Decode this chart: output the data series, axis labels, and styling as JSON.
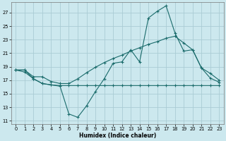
{
  "xlabel": "Humidex (Indice chaleur)",
  "xlim": [
    -0.5,
    23.5
  ],
  "ylim": [
    10.5,
    28.5
  ],
  "xticks": [
    0,
    1,
    2,
    3,
    4,
    5,
    6,
    7,
    8,
    9,
    10,
    11,
    12,
    13,
    14,
    15,
    16,
    17,
    18,
    19,
    20,
    21,
    22,
    23
  ],
  "yticks": [
    11,
    13,
    15,
    17,
    19,
    21,
    23,
    25,
    27
  ],
  "bg_color": "#cce8ee",
  "grid_color": "#aaccd4",
  "line_color": "#1a6b6b",
  "line1_x": [
    0,
    1,
    2,
    3,
    4,
    5,
    6,
    7,
    8,
    9,
    10,
    11,
    12,
    13,
    14,
    15,
    16,
    17,
    18,
    19,
    20,
    21,
    22,
    23
  ],
  "line1_y": [
    18.5,
    18.5,
    17.2,
    16.5,
    16.3,
    16.1,
    12.0,
    11.5,
    13.2,
    15.3,
    17.2,
    19.5,
    19.7,
    21.5,
    19.7,
    26.2,
    27.2,
    28.0,
    24.0,
    21.3,
    21.5,
    18.8,
    17.3,
    16.7
  ],
  "line2_x": [
    0,
    1,
    2,
    3,
    4,
    5,
    6,
    7,
    8,
    9,
    10,
    11,
    12,
    13,
    14,
    15,
    16,
    17,
    18,
    19,
    20,
    21,
    22,
    23
  ],
  "line2_y": [
    18.5,
    18.2,
    17.2,
    16.5,
    16.3,
    16.2,
    16.2,
    16.2,
    16.2,
    16.2,
    16.2,
    16.2,
    16.2,
    16.2,
    16.2,
    16.2,
    16.2,
    16.2,
    16.2,
    16.2,
    16.2,
    16.2,
    16.2,
    16.2
  ],
  "line3_x": [
    0,
    1,
    2,
    3,
    4,
    5,
    6,
    7,
    8,
    9,
    10,
    11,
    12,
    13,
    14,
    15,
    16,
    17,
    18,
    19,
    20,
    21,
    22,
    23
  ],
  "line3_y": [
    18.5,
    18.5,
    17.5,
    17.5,
    16.8,
    16.5,
    16.5,
    17.2,
    18.1,
    18.9,
    19.6,
    20.2,
    20.7,
    21.3,
    21.8,
    22.3,
    22.7,
    23.2,
    23.5,
    22.5,
    21.5,
    18.8,
    18.0,
    17.0
  ]
}
